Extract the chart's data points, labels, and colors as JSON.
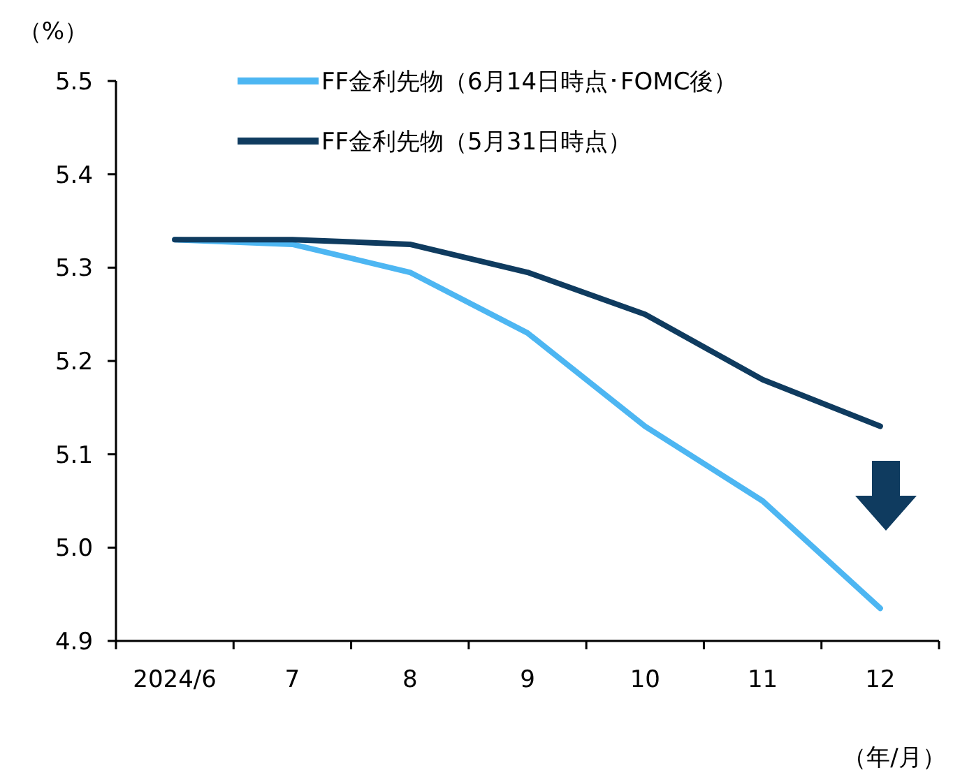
{
  "chart_data": {
    "type": "line",
    "ylabel": "（%）",
    "xlabel": "（年/月）",
    "categories": [
      "2024/6",
      "7",
      "8",
      "9",
      "10",
      "11",
      "12"
    ],
    "series": [
      {
        "name": "FF金利先物（6月14日時点･FOMC後）",
        "color": "#4db6f2",
        "values": [
          5.33,
          5.325,
          5.295,
          5.23,
          5.13,
          5.05,
          4.935
        ]
      },
      {
        "name": "FF金利先物（5月31日時点）",
        "color": "#0f3b5f",
        "values": [
          5.33,
          5.33,
          5.325,
          5.295,
          5.25,
          5.18,
          5.13
        ]
      }
    ],
    "ylim": [
      4.9,
      5.5
    ],
    "yticks": [
      4.9,
      {
        "value": 5.0,
        "label": "5.0"
      },
      5.1,
      5.2,
      5.3,
      5.4,
      5.5
    ],
    "grid": false,
    "legend": "top",
    "marker": "none",
    "line_style": "solid"
  }
}
